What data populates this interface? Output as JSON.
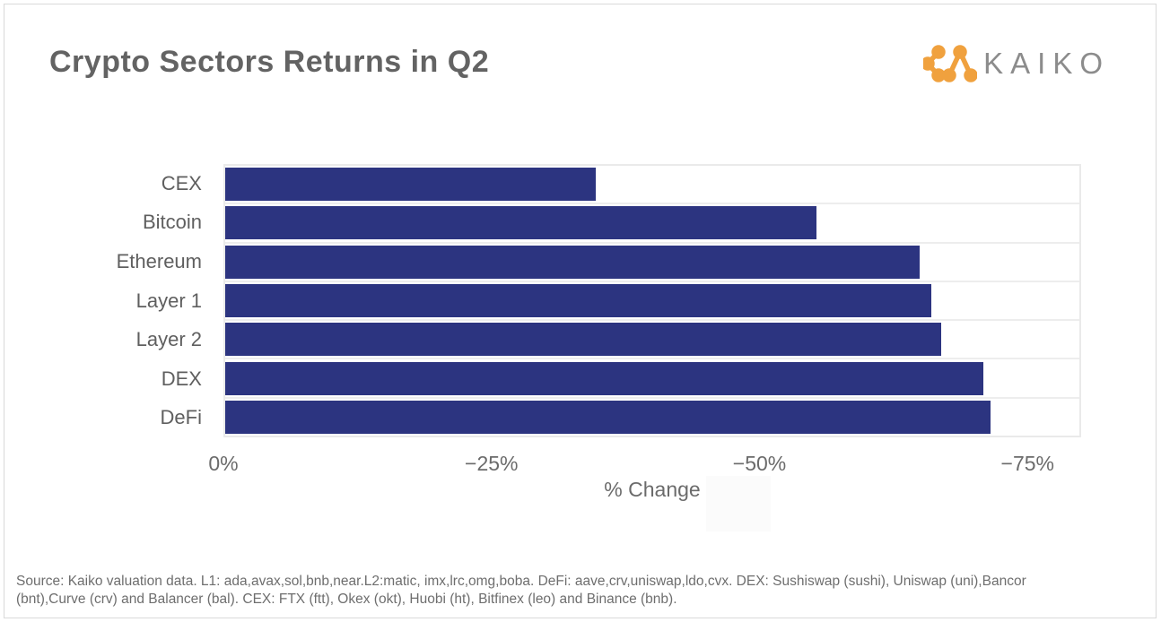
{
  "page": {
    "background": "#ffffff",
    "frame_border_color": "#d9d9d9"
  },
  "header": {
    "title": "Crypto Sectors Returns in Q2",
    "brand": {
      "name": "KAIKO",
      "mark_icon": "kaiko-node-chevrons",
      "mark_color": "#f0a13e",
      "text_color": "#8c8c8c"
    }
  },
  "chart_data": {
    "type": "bar",
    "orientation": "horizontal",
    "title": "Crypto Sectors Returns in Q2",
    "categories": [
      "CEX",
      "Bitcoin",
      "Ethereum",
      "Layer 1",
      "Layer 2",
      "DEX",
      "DeFi"
    ],
    "values": [
      -34.7,
      -55.4,
      -65.0,
      -66.1,
      -67.1,
      -71.0,
      -71.7
    ],
    "unit": "%",
    "xlabel": "% Change",
    "x_ticks": [
      {
        "label": "0%",
        "value": 0
      },
      {
        "label": "−25%",
        "value": -25
      },
      {
        "label": "−50%",
        "value": -50
      },
      {
        "label": "−75%",
        "value": -75
      }
    ],
    "xlim": [
      0,
      -80
    ],
    "bar_color": "#2c3480",
    "row_separator_color": "#ededed",
    "grid": false,
    "legend": false
  },
  "footer": {
    "source_text": "Source: Kaiko valuation data. L1: ada,avax,sol,bnb,near.L2:matic, imx,lrc,omg,boba. DeFi: aave,crv,uniswap,ldo,cvx. DEX: Sushiswap (sushi), Uniswap (uni),Bancor (bnt),Curve (crv) and Balancer (bal). CEX:  FTX (ftt), Okex (okt), Huobi (ht), Bitfinex (leo) and Binance (bnb)."
  }
}
